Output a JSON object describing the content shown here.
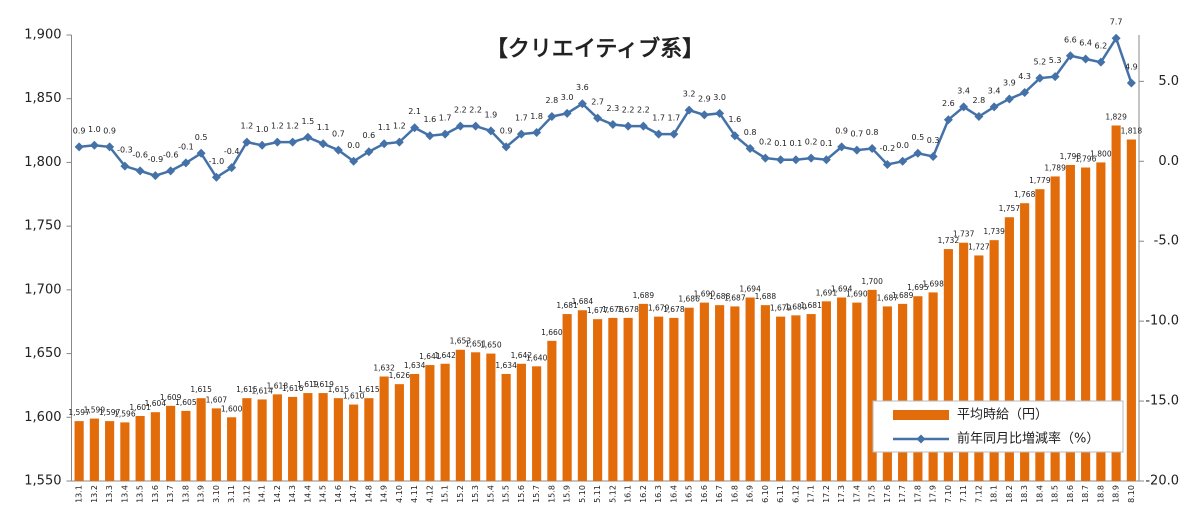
{
  "chart_data": {
    "type": "bar_line",
    "title": "【クリエイティブ系】",
    "categories": [
      "13.1",
      "13.2",
      "13.3",
      "13.4",
      "13.5",
      "13.6",
      "13.7",
      "13.8",
      "13.9",
      "3.10",
      "3.11",
      "3.12",
      "14.1",
      "14.2",
      "14.3",
      "14.4",
      "14.5",
      "14.6",
      "14.7",
      "14.8",
      "14.9",
      "4.10",
      "4.11",
      "4.12",
      "15.1",
      "15.2",
      "15.3",
      "15.4",
      "15.5",
      "15.6",
      "15.7",
      "15.8",
      "15.9",
      "5.10",
      "5.11",
      "5.12",
      "16.1",
      "16.2",
      "16.3",
      "16.4",
      "16.5",
      "16.6",
      "16.7",
      "16.8",
      "16.9",
      "6.10",
      "6.11",
      "6.12",
      "17.1",
      "17.2",
      "17.3",
      "17.4",
      "17.5",
      "17.6",
      "17.7",
      "17.8",
      "17.9",
      "7.10",
      "7.11",
      "7.12",
      "18.1",
      "18.2",
      "18.3",
      "18.4",
      "18.5",
      "18.6",
      "18.7",
      "18.8",
      "18.9",
      "8.10"
    ],
    "series": [
      {
        "name": "平均時給（円）",
        "type": "bar",
        "color": "#e36c0a",
        "values": [
          1597,
          1599,
          1597,
          1596,
          1601,
          1604,
          1609,
          1605,
          1615,
          1607,
          1600,
          1615,
          1614,
          1618,
          1616,
          1619,
          1619,
          1615,
          1610,
          1615,
          1632,
          1626,
          1634,
          1641,
          1642,
          1653,
          1651,
          1650,
          1634,
          1642,
          1640,
          1660,
          1681,
          1684,
          1677,
          1678,
          1678,
          1689,
          1679,
          1678,
          1686,
          1690,
          1688,
          1687,
          1694,
          1688,
          1679,
          1680,
          1681,
          1691,
          1694,
          1690,
          1700,
          1687,
          1689,
          1695,
          1698,
          1732,
          1737,
          1727,
          1739,
          1757,
          1768,
          1779,
          1789,
          1798,
          1796,
          1800,
          1829,
          1818
        ],
        "value_labels": [
          "1,597",
          "1,599",
          "1,597",
          "1,596",
          "1,601",
          "1,604",
          "1,609",
          "1,605",
          "1,615",
          "1,607",
          "1,600",
          "1,615",
          "1,614",
          "1,618",
          "1,616",
          "1,619",
          "1,619",
          "1,615",
          "1,610",
          "1,615",
          "1,632",
          "1,626",
          "1,634",
          "1,641",
          "1,642",
          "1,653",
          "1,651",
          "1,650",
          "1,634",
          "1,642",
          "1,640",
          "1,660",
          "1,681",
          "1,684",
          "1,677",
          "1,678",
          "1,678",
          "1,689",
          "1,679",
          "1,678",
          "1,686",
          "1,690",
          "1,688",
          "1,687",
          "1,694",
          "1,688",
          "1,679",
          "1,680",
          "1,681",
          "1,691",
          "1,694",
          "1,690",
          "1,700",
          "1,687",
          "1,689",
          "1,695",
          "1,698",
          "1,732",
          "1,737",
          "1,727",
          "1,739",
          "1,757",
          "1,768",
          "1,779",
          "1,789",
          "1,798",
          "1,796",
          "1,800",
          "1,829",
          "1,818"
        ]
      },
      {
        "name": "前年同月比増減率（%）",
        "type": "line",
        "axis": "y2",
        "color": "#4472a8",
        "values": [
          0.9,
          1.0,
          0.9,
          -0.3,
          -0.6,
          -0.9,
          -0.6,
          -0.1,
          0.5,
          -1.0,
          -0.4,
          1.2,
          1.0,
          1.2,
          1.2,
          1.5,
          1.1,
          0.7,
          0.0,
          0.6,
          1.1,
          1.2,
          2.1,
          1.6,
          1.7,
          2.2,
          2.2,
          1.9,
          0.9,
          1.7,
          1.8,
          2.8,
          3.0,
          3.6,
          2.7,
          2.3,
          2.2,
          2.2,
          1.7,
          1.7,
          3.2,
          2.9,
          3.0,
          1.6,
          0.8,
          0.2,
          0.1,
          0.1,
          0.2,
          0.1,
          0.9,
          0.7,
          0.8,
          -0.2,
          0.0,
          0.5,
          0.3,
          2.6,
          3.4,
          2.8,
          3.4,
          3.9,
          4.3,
          5.2,
          5.3,
          6.6,
          6.4,
          6.2,
          7.7,
          4.9
        ],
        "value_labels": [
          "0.9",
          "1.0",
          "0.9",
          "-0.3",
          "-0.6",
          "-0.9",
          "-0.6",
          "-0.1",
          "0.5",
          "-1.0",
          "-0.4",
          "1.2",
          "1.0",
          "1.2",
          "1.2",
          "1.5",
          "1.1",
          "0.7",
          "0.0",
          "0.6",
          "1.1",
          "1.2",
          "2.1",
          "1.6",
          "1.7",
          "2.2",
          "2.2",
          "1.9",
          "0.9",
          "1.7",
          "1.8",
          "2.8",
          "3.0",
          "3.6",
          "2.7",
          "2.3",
          "2.2",
          "2.2",
          "1.7",
          "1.7",
          "3.2",
          "2.9",
          "3.0",
          "1.6",
          "0.8",
          "0.2",
          "0.1",
          "0.1",
          "0.2",
          "0.1",
          "0.9",
          "0.7",
          "0.8",
          "-0.2",
          "0.0",
          "0.5",
          "0.3",
          "2.6",
          "3.4",
          "2.8",
          "3.4",
          "3.9",
          "4.3",
          "5.2",
          "5.3",
          "6.6",
          "6.4",
          "6.2",
          "7.7",
          "4.9"
        ]
      }
    ],
    "ylim": [
      1550,
      1900
    ],
    "yticks": [
      {
        "value": 1550,
        "label": "1,550"
      },
      {
        "value": 1600,
        "label": "1,600"
      },
      {
        "value": 1650,
        "label": "1,650"
      },
      {
        "value": 1700,
        "label": "1,700"
      },
      {
        "value": 1750,
        "label": "1,750"
      },
      {
        "value": 1800,
        "label": "1,800"
      },
      {
        "value": 1850,
        "label": "1,850"
      },
      {
        "value": 1900,
        "label": "1,900"
      }
    ],
    "y2lim": [
      -20,
      7.9
    ],
    "y2ticks": [
      {
        "value": -20,
        "label": "-20.0"
      },
      {
        "value": -15,
        "label": "-15.0"
      },
      {
        "value": -10,
        "label": "-10.0"
      },
      {
        "value": -5,
        "label": "-5.0"
      },
      {
        "value": 0,
        "label": "0.0"
      },
      {
        "value": 5,
        "label": "5.0"
      }
    ],
    "legend": "lower right"
  }
}
